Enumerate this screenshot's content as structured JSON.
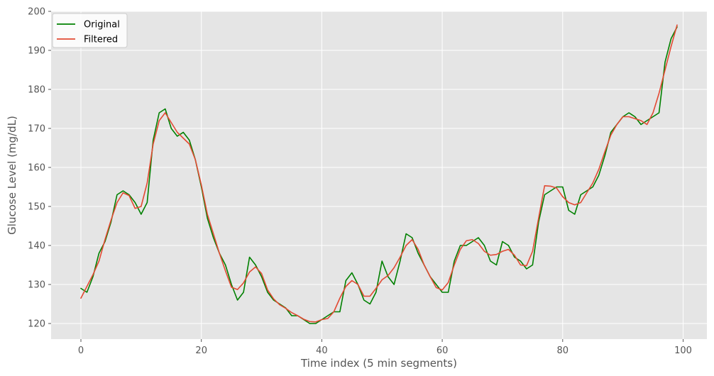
{
  "chart_data": {
    "type": "line",
    "title": "",
    "xlabel": "Time index (5 min segments)",
    "ylabel": "Glucose Level (mg/dL)",
    "xlim": [
      -4.95,
      103.95
    ],
    "ylim": [
      116,
      200
    ],
    "xticks": [
      0,
      20,
      40,
      60,
      80,
      100
    ],
    "yticks": [
      120,
      130,
      140,
      150,
      160,
      170,
      180,
      190,
      200
    ],
    "grid": true,
    "legend_position": "top-left",
    "colors": {
      "plot_background": "#e5e5e5",
      "grid": "#ffffff",
      "tick_text": "#555555",
      "legend_background": "#ffffff"
    },
    "x": [
      0,
      1,
      2,
      3,
      4,
      5,
      6,
      7,
      8,
      9,
      10,
      11,
      12,
      13,
      14,
      15,
      16,
      17,
      18,
      19,
      20,
      21,
      22,
      23,
      24,
      25,
      26,
      27,
      28,
      29,
      30,
      31,
      32,
      33,
      34,
      35,
      36,
      37,
      38,
      39,
      40,
      41,
      42,
      43,
      44,
      45,
      46,
      47,
      48,
      49,
      50,
      51,
      52,
      53,
      54,
      55,
      56,
      57,
      58,
      59,
      60,
      61,
      62,
      63,
      64,
      65,
      66,
      67,
      68,
      69,
      70,
      71,
      72,
      73,
      74,
      75,
      76,
      77,
      78,
      79,
      80,
      81,
      82,
      83,
      84,
      85,
      86,
      87,
      88,
      89,
      90,
      91,
      92,
      93,
      94,
      95,
      96,
      97,
      98,
      99
    ],
    "series": [
      {
        "name": "Original",
        "color": "#008000",
        "values": [
          129,
          128,
          132,
          138,
          141,
          146,
          153,
          154,
          153,
          151,
          148,
          151,
          167,
          174,
          175,
          170,
          168,
          169,
          167,
          162,
          155,
          147,
          142,
          138,
          135,
          130,
          126,
          128,
          137,
          135,
          132,
          128,
          126,
          125,
          124,
          122,
          122,
          121,
          120,
          120,
          121,
          122,
          123,
          123,
          131,
          133,
          130,
          126,
          125,
          128,
          136,
          132,
          130,
          136,
          143,
          142,
          138,
          135,
          132,
          130,
          128,
          128,
          136,
          140,
          140,
          141,
          142,
          140,
          136,
          135,
          141,
          140,
          137,
          136,
          134,
          135,
          146,
          153,
          154,
          155,
          155,
          149,
          148,
          153,
          154,
          155,
          158,
          163,
          169,
          171,
          173,
          174,
          173,
          171,
          172,
          173,
          174,
          187,
          193,
          196
        ]
      },
      {
        "name": "Filtered",
        "color": "#e24a33",
        "values": [
          126.5,
          129.5,
          132.5,
          136,
          141.5,
          146.5,
          151,
          153.5,
          152.8,
          149.5,
          150,
          156,
          166,
          172,
          174,
          171.5,
          169,
          167.5,
          166,
          162,
          155.5,
          148,
          143,
          138,
          133.5,
          129.3,
          128.7,
          130.4,
          133.2,
          134.5,
          132.8,
          128.6,
          126.3,
          124.8,
          123.9,
          122.8,
          122,
          121.1,
          120.5,
          120.4,
          121,
          121.3,
          123,
          126.5,
          129.5,
          131,
          130,
          127,
          127,
          129,
          131.2,
          132.3,
          134.3,
          137,
          140,
          141.5,
          139,
          135,
          132,
          129.2,
          128.6,
          130.5,
          135,
          139,
          141.2,
          141.5,
          140.5,
          138.5,
          137.5,
          137.7,
          138.5,
          139,
          137.5,
          135,
          134.8,
          138.5,
          147,
          155.3,
          155.2,
          154.7,
          152.5,
          151,
          150.4,
          151,
          153.5,
          156,
          159.5,
          164,
          168.3,
          171,
          173,
          173,
          172.5,
          172,
          171,
          174,
          179,
          185,
          191,
          196.5
        ]
      }
    ]
  }
}
